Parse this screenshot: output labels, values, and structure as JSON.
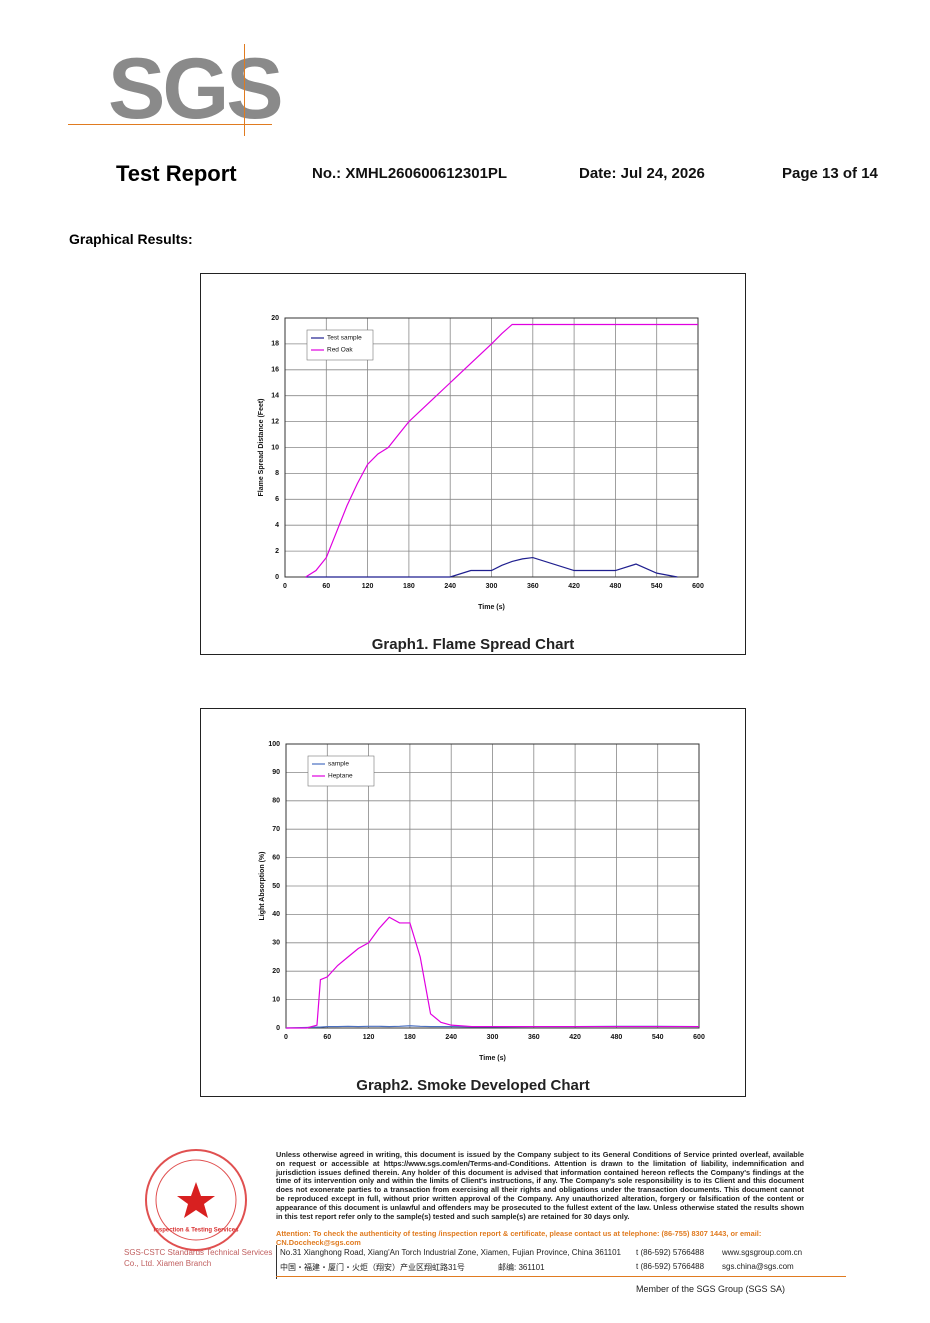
{
  "header": {
    "logo": "SGS",
    "title": "Test Report",
    "number": "No.: XMHL260600612301PL",
    "date": "Date:  Jul 24, 2026",
    "page": "Page 13 of 14"
  },
  "section_title": "Graphical Results:",
  "chart_data": [
    {
      "type": "line",
      "title": "Graph1. Flame Spread Chart",
      "x_label": "Time (s)",
      "y_label": "Flame Spread Distance (Feet)",
      "x": [
        0,
        30,
        45,
        60,
        75,
        90,
        105,
        120,
        135,
        150,
        165,
        180,
        210,
        240,
        270,
        300,
        315,
        330,
        345,
        360,
        420,
        480,
        510,
        540,
        570,
        600
      ],
      "series": [
        {
          "name": "Test sample",
          "color": "#1f1f8f",
          "values": [
            null,
            0,
            0,
            0,
            0,
            0,
            0,
            0,
            0,
            0,
            0,
            0,
            0,
            0,
            0.5,
            0.5,
            0.9,
            1.2,
            1.4,
            1.5,
            0.5,
            0.5,
            1.0,
            0.3,
            0,
            null
          ]
        },
        {
          "name": "Red Oak",
          "color": "#e000e0",
          "values": [
            null,
            0,
            0.5,
            1.5,
            3.5,
            5.5,
            7.2,
            8.7,
            9.5,
            10,
            11,
            12,
            13.5,
            15,
            16.5,
            18,
            18.8,
            19.5,
            19.5,
            19.5,
            19.5,
            19.5,
            19.5,
            19.5,
            19.5,
            19.5
          ]
        }
      ],
      "xlim": [
        0,
        600
      ],
      "xticks": [
        0,
        60,
        120,
        180,
        240,
        300,
        360,
        420,
        480,
        540,
        600
      ],
      "ylim": [
        0,
        20
      ],
      "yticks": [
        0,
        2,
        4,
        6,
        8,
        10,
        12,
        14,
        16,
        18,
        20
      ],
      "grid": true,
      "legend": "upper left"
    },
    {
      "type": "line",
      "title": "Graph2. Smoke Developed Chart",
      "x_label": "Time (s)",
      "y_label": "Light Absorption (%)",
      "x": [
        0,
        30,
        45,
        50,
        60,
        75,
        90,
        105,
        120,
        135,
        150,
        165,
        180,
        195,
        210,
        225,
        240,
        270,
        300,
        360,
        420,
        480,
        540,
        600
      ],
      "series": [
        {
          "name": "sample",
          "color": "#4a6fc0",
          "values": [
            0,
            0.2,
            0.3,
            0.3,
            0.5,
            0.5,
            0.6,
            0.5,
            0.6,
            0.6,
            0.5,
            0.6,
            0.8,
            0.6,
            0.5,
            0.5,
            0.5,
            0.4,
            0.4,
            0.5,
            0.5,
            0.6,
            0.6,
            0.5
          ]
        },
        {
          "name": "Heptane",
          "color": "#e000e0",
          "values": [
            0,
            0,
            1,
            17,
            18,
            22,
            25,
            28,
            30,
            35,
            39,
            37,
            37,
            25,
            5,
            2,
            1,
            0.5,
            0.5,
            0.5,
            0.5,
            0.5,
            0.5,
            0.5
          ]
        }
      ],
      "xlim": [
        0,
        600
      ],
      "xticks": [
        0,
        60,
        120,
        180,
        240,
        300,
        360,
        420,
        480,
        540,
        600
      ],
      "ylim": [
        0,
        100
      ],
      "yticks": [
        0,
        10,
        20,
        30,
        40,
        50,
        60,
        70,
        80,
        90,
        100
      ],
      "grid": true,
      "legend": "upper left"
    }
  ],
  "footer": {
    "stamp": "Inspection & Testing Services",
    "company": "SGS-CSTC Standards Technical Services Co., Ltd. Xiamen Branch",
    "disclaimer": "Unless otherwise agreed in writing, this document is issued by the Company subject to its General Conditions of Service printed overleaf, available on request or accessible at https://www.sgs.com/en/Terms-and-Conditions. Attention is drawn to the limitation of liability, indemnification and jurisdiction issues defined therein. Any holder of this document is advised that information contained hereon reflects the Company's findings at the time of its intervention only and within the limits of Client's instructions, if any. The Company's sole responsibility is to its Client and this document does not exonerate parties to a transaction from exercising all their rights and obligations under the transaction documents. This document cannot be reproduced except in full, without prior written approval of the Company. Any unauthorized alteration, forgery or falsification of the content or appearance of this document is unlawful and offenders may be prosecuted to the fullest extent of the law. Unless otherwise stated the results shown in this test report refer only to the sample(s) tested and such sample(s) are retained for 30 days only.",
    "attention": "Attention: To check the authenticity of testing /inspection report & certificate, please contact us at telephone: (86-755) 8307 1443, or email: CN.Doccheck@sgs.com",
    "address_en": "No.31 Xianghong Road, Xiang'An Torch Industrial Zone, Xiamen, Fujian Province, China  361101",
    "phone_1": "t (86-592) 5766488",
    "web": "www.sgsgroup.com.cn",
    "address_cn": "中国・福建・厦门・火炬（翔安）产业区翔虹路31号",
    "postcode_cn": "邮编: 361101",
    "phone_2": "t (86-592) 5766488",
    "email": "sgs.china@sgs.com",
    "member": "Member of the SGS Group (SGS SA)"
  }
}
